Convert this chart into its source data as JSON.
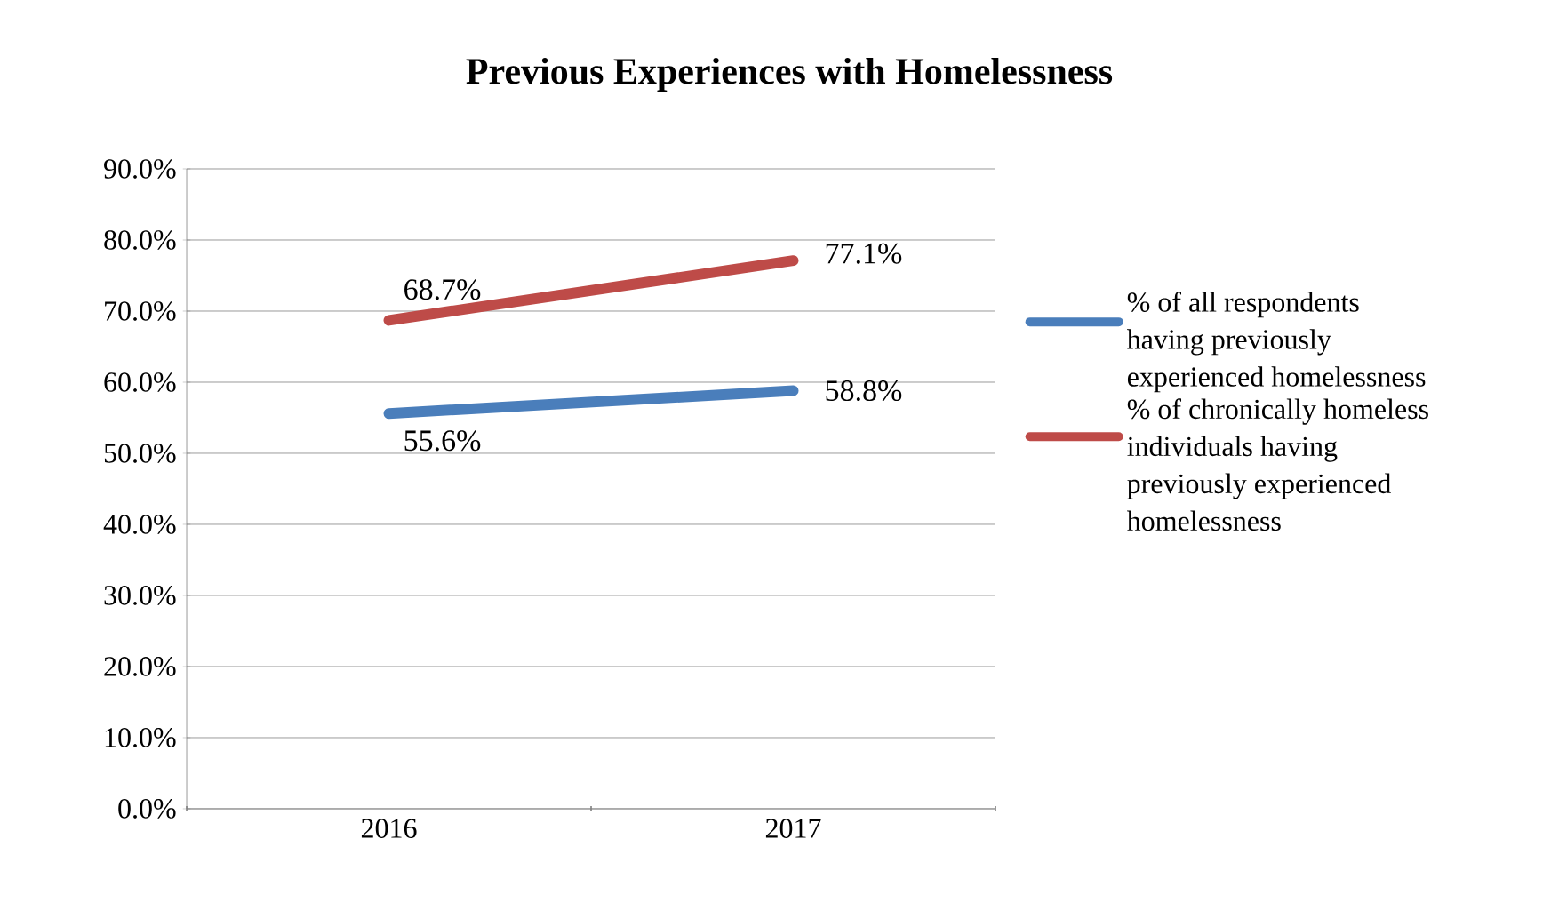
{
  "chart_data": {
    "type": "line",
    "title": "Previous Experiences with Homelessness",
    "categories": [
      "2016",
      "2017"
    ],
    "series": [
      {
        "name": "% of all respondents having previously experienced homelessness",
        "color": "#4a7ebb",
        "values": [
          55.6,
          58.8
        ],
        "value_labels": [
          "55.6%",
          "58.8%"
        ]
      },
      {
        "name": "% of chronically homeless individuals having previously experienced homelessness",
        "color": "#be4b48",
        "values": [
          68.7,
          77.1
        ],
        "value_labels": [
          "68.7%",
          "77.1%"
        ]
      }
    ],
    "ylim": [
      0,
      90
    ],
    "yticks": [
      {
        "value": 0,
        "label": "0.0%"
      },
      {
        "value": 10,
        "label": "10.0%"
      },
      {
        "value": 20,
        "label": "20.0%"
      },
      {
        "value": 30,
        "label": "30.0%"
      },
      {
        "value": 40,
        "label": "40.0%"
      },
      {
        "value": 50,
        "label": "50.0%"
      },
      {
        "value": 60,
        "label": "60.0%"
      },
      {
        "value": 70,
        "label": "70.0%"
      },
      {
        "value": 80,
        "label": "80.0%"
      },
      {
        "value": 90,
        "label": "90.0%"
      }
    ],
    "grid": "y",
    "legend": "right",
    "marker": "none",
    "line_style": "solid"
  }
}
